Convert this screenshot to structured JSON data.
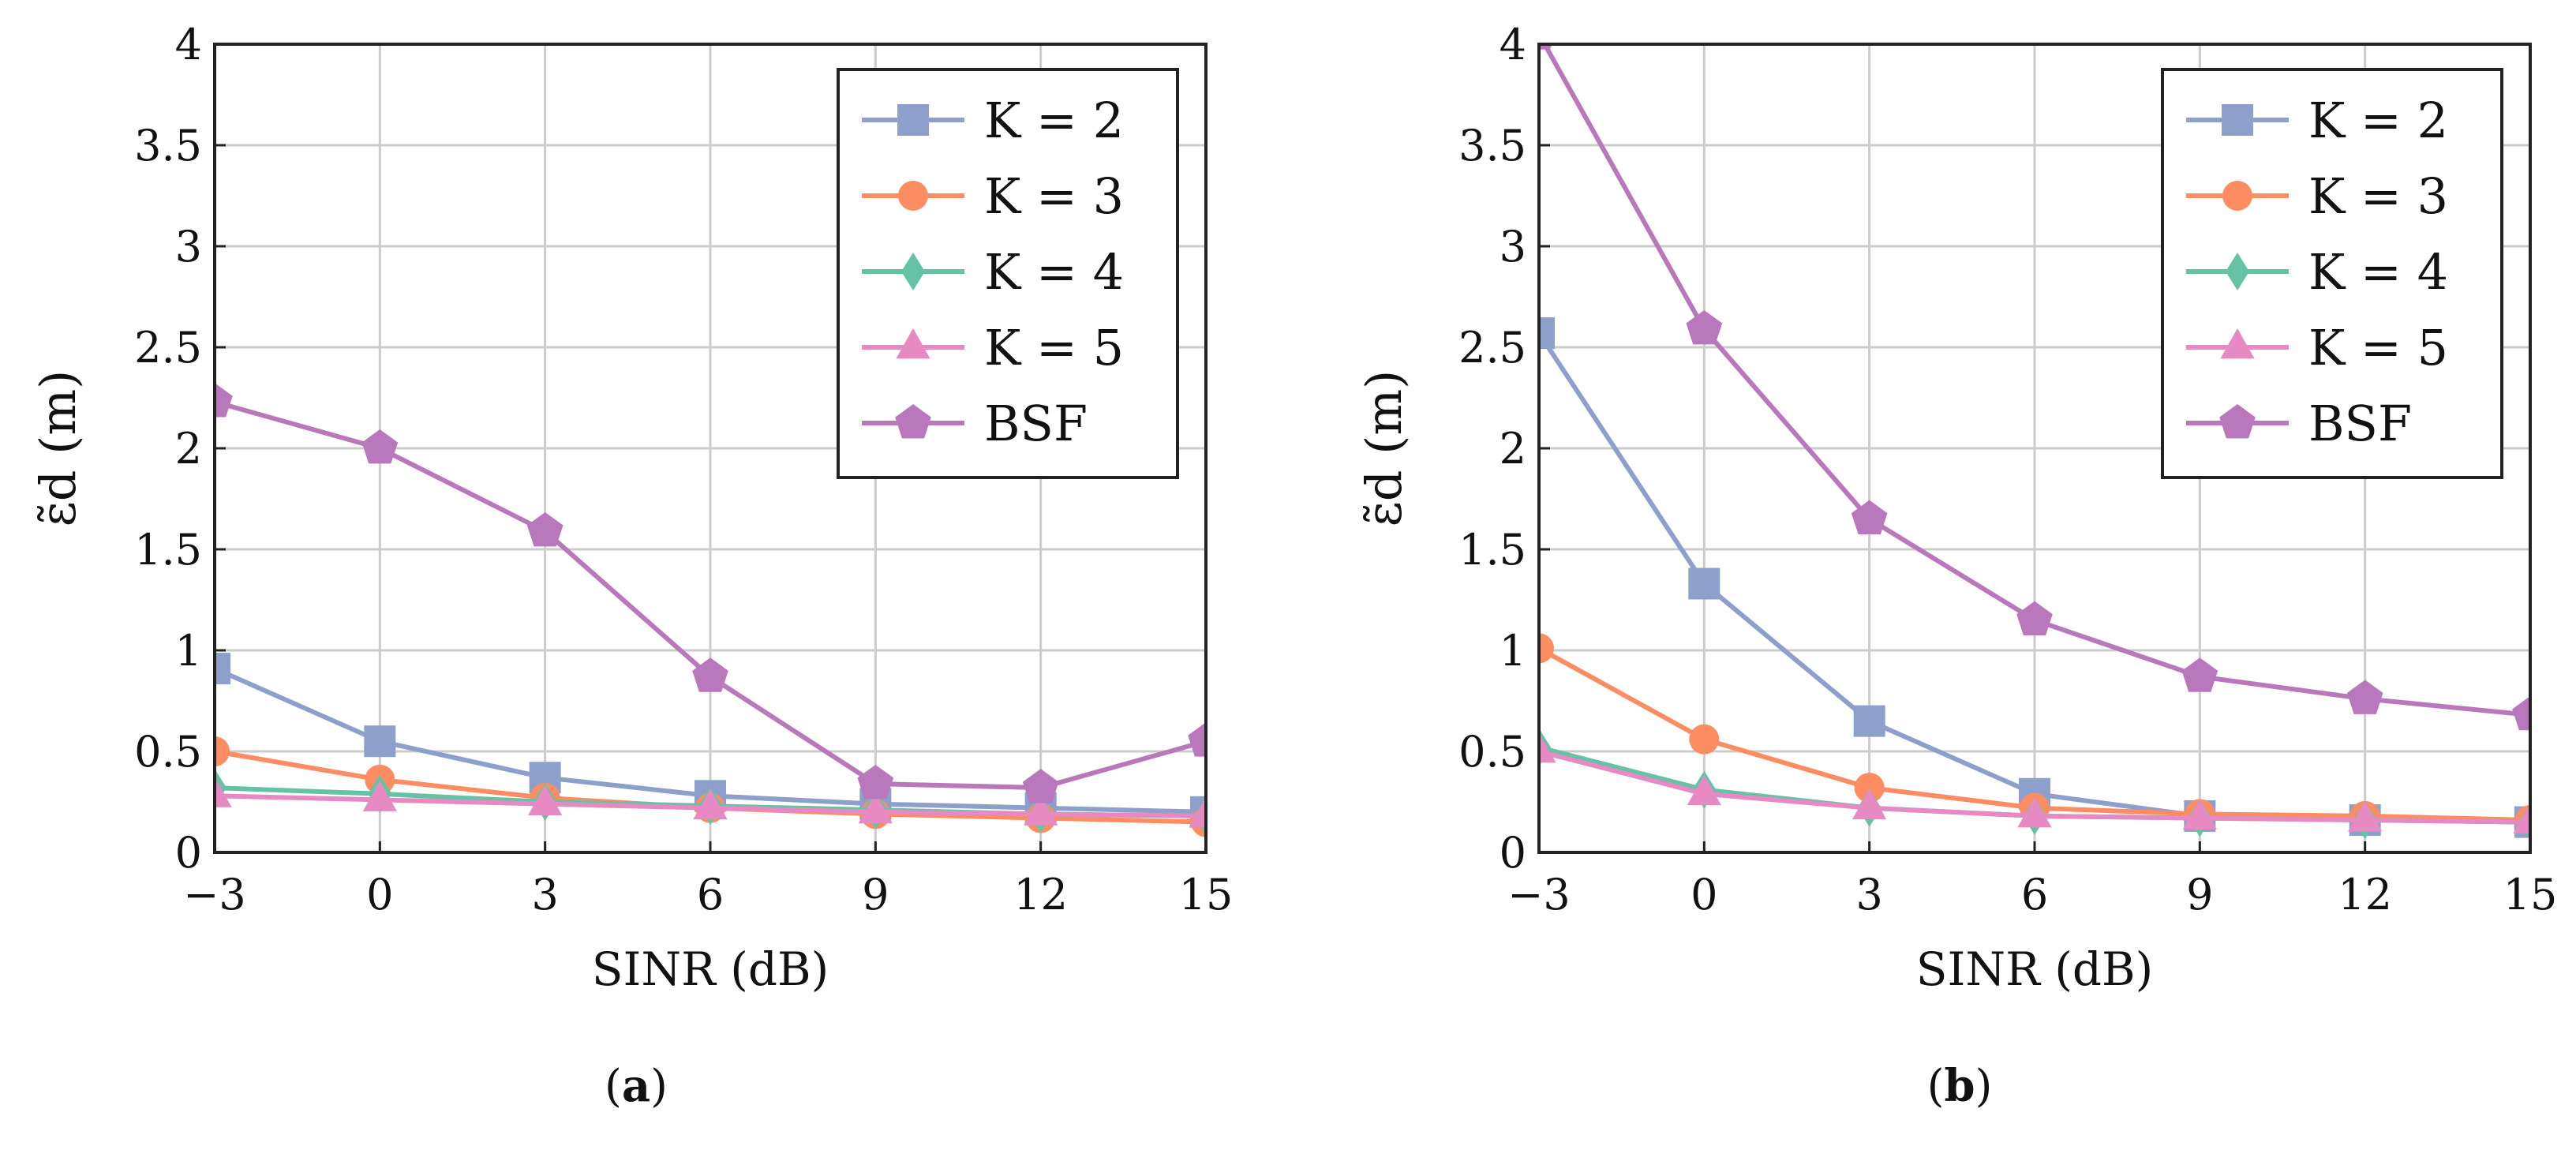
{
  "chart_data": [
    {
      "type": "line",
      "panel_label": "a",
      "xlabel": "SINR (dB)",
      "ylabel": "ε̃d (m)",
      "x": [
        -3,
        0,
        3,
        6,
        9,
        12,
        15
      ],
      "xticks": [
        "−3",
        "0",
        "3",
        "6",
        "9",
        "12",
        "15"
      ],
      "yticks": [
        "0",
        "0.5",
        "1",
        "1.5",
        "2",
        "2.5",
        "3",
        "3.5",
        "4"
      ],
      "xlim": [
        -3,
        15
      ],
      "ylim": [
        0,
        4
      ],
      "grid": true,
      "legend_position": "top-right",
      "series": [
        {
          "name": "K = 2",
          "color": "#8da0cb",
          "marker": "square",
          "values": [
            0.91,
            0.55,
            0.37,
            0.28,
            0.24,
            0.22,
            0.2
          ]
        },
        {
          "name": "K = 3",
          "color": "#fc8d62",
          "marker": "circle",
          "values": [
            0.5,
            0.36,
            0.27,
            0.22,
            0.19,
            0.17,
            0.15
          ]
        },
        {
          "name": "K = 4",
          "color": "#66c2a5",
          "marker": "diamond",
          "values": [
            0.32,
            0.29,
            0.25,
            0.23,
            0.21,
            0.19,
            0.18
          ]
        },
        {
          "name": "K = 5",
          "color": "#e78ac3",
          "marker": "triangle",
          "values": [
            0.28,
            0.26,
            0.24,
            0.22,
            0.2,
            0.19,
            0.18
          ]
        },
        {
          "name": "BSF",
          "color": "#b978bc",
          "marker": "pentagon",
          "values": [
            2.23,
            2.0,
            1.59,
            0.87,
            0.34,
            0.32,
            0.55
          ]
        }
      ]
    },
    {
      "type": "line",
      "panel_label": "b",
      "xlabel": "SINR (dB)",
      "ylabel": "ε̃d (m)",
      "x": [
        -3,
        0,
        3,
        6,
        9,
        12,
        15
      ],
      "xticks": [
        "−3",
        "0",
        "3",
        "6",
        "9",
        "12",
        "15"
      ],
      "yticks": [
        "0",
        "0.5",
        "1",
        "1.5",
        "2",
        "2.5",
        "3",
        "3.5",
        "4"
      ],
      "xlim": [
        -3,
        15
      ],
      "ylim": [
        0,
        4
      ],
      "grid": true,
      "legend_position": "top-right",
      "series": [
        {
          "name": "K = 2",
          "color": "#8da0cb",
          "marker": "square",
          "values": [
            2.57,
            1.33,
            0.65,
            0.29,
            0.18,
            0.16,
            0.15
          ]
        },
        {
          "name": "K = 3",
          "color": "#fc8d62",
          "marker": "circle",
          "values": [
            1.01,
            0.56,
            0.32,
            0.22,
            0.19,
            0.18,
            0.16
          ]
        },
        {
          "name": "K = 4",
          "color": "#66c2a5",
          "marker": "diamond",
          "values": [
            0.52,
            0.31,
            0.22,
            0.18,
            0.17,
            0.16,
            0.15
          ]
        },
        {
          "name": "K = 5",
          "color": "#e78ac3",
          "marker": "triangle",
          "values": [
            0.5,
            0.29,
            0.22,
            0.18,
            0.17,
            0.16,
            0.15
          ]
        },
        {
          "name": "BSF",
          "color": "#b978bc",
          "marker": "pentagon",
          "values": [
            4.05,
            2.59,
            1.65,
            1.15,
            0.87,
            0.76,
            0.68
          ]
        }
      ]
    }
  ]
}
